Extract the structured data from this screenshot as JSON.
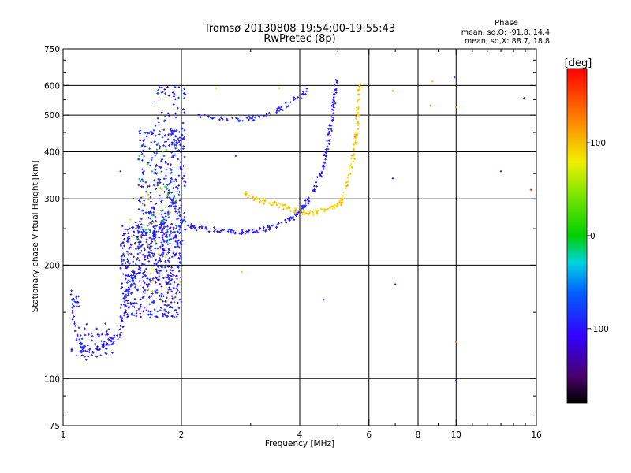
{
  "chart_data": {
    "type": "scatter",
    "title": "Tromsø 20130808 19:54:00-19:55:43",
    "subtitle": "RwPretec (8p)",
    "xlabel": "Frequency [MHz]",
    "ylabel": "Stationary phase Virtual Height [km]",
    "x_scale": "log",
    "y_scale": "log",
    "xlim": [
      1,
      16
    ],
    "ylim": [
      75,
      750
    ],
    "x_ticks": [
      1,
      2,
      4,
      6,
      8,
      10,
      16
    ],
    "y_ticks": [
      75,
      100,
      200,
      300,
      400,
      500,
      600,
      750
    ],
    "x_gridlines": [
      2,
      4,
      6,
      8,
      10
    ],
    "y_gridlines": [
      100,
      200,
      300,
      400,
      500,
      600
    ],
    "grid": true,
    "stats": {
      "heading": "Phase",
      "o_line": "mean, sd,O: -91.8, 14.4",
      "x_line": "mean, sd,X:  88.7, 18.8"
    },
    "colorbar": {
      "label": "[deg]",
      "range": [
        -180,
        180
      ],
      "ticks": [
        100,
        0,
        -100
      ],
      "tick_labels": [
        "100",
        "0",
        "-100"
      ]
    },
    "o_trace": [
      {
        "f": 1.05,
        "h": 160
      },
      {
        "f": 1.1,
        "h": 120
      },
      {
        "f": 1.2,
        "h": 118
      },
      {
        "f": 1.3,
        "h": 125
      },
      {
        "f": 1.4,
        "h": 130
      },
      {
        "f": 1.45,
        "h": 165
      },
      {
        "f": 1.5,
        "h": 185
      },
      {
        "f": 1.6,
        "h": 200
      },
      {
        "f": 1.7,
        "h": 240
      },
      {
        "f": 1.8,
        "h": 260
      },
      {
        "f": 1.9,
        "h": 300
      },
      {
        "f": 2.0,
        "h": 260
      },
      {
        "f": 2.2,
        "h": 250
      },
      {
        "f": 2.5,
        "h": 248
      },
      {
        "f": 2.8,
        "h": 245
      },
      {
        "f": 3.0,
        "h": 246
      },
      {
        "f": 3.3,
        "h": 250
      },
      {
        "f": 3.6,
        "h": 258
      },
      {
        "f": 3.9,
        "h": 270
      },
      {
        "f": 4.1,
        "h": 285
      },
      {
        "f": 4.3,
        "h": 310
      },
      {
        "f": 4.5,
        "h": 345
      },
      {
        "f": 4.65,
        "h": 390
      },
      {
        "f": 4.75,
        "h": 440
      },
      {
        "f": 4.85,
        "h": 500
      },
      {
        "f": 4.9,
        "h": 560
      },
      {
        "f": 4.95,
        "h": 620
      },
      {
        "f": 2.2,
        "h": 500
      },
      {
        "f": 2.6,
        "h": 485
      },
      {
        "f": 3.0,
        "h": 490
      },
      {
        "f": 3.4,
        "h": 505
      },
      {
        "f": 3.8,
        "h": 540
      },
      {
        "f": 4.2,
        "h": 580
      }
    ],
    "x_trace": [
      {
        "f": 2.9,
        "h": 310
      },
      {
        "f": 3.1,
        "h": 300
      },
      {
        "f": 3.4,
        "h": 292
      },
      {
        "f": 3.7,
        "h": 285
      },
      {
        "f": 4.0,
        "h": 277
      },
      {
        "f": 4.3,
        "h": 275
      },
      {
        "f": 4.6,
        "h": 280
      },
      {
        "f": 4.9,
        "h": 285
      },
      {
        "f": 5.1,
        "h": 295
      },
      {
        "f": 5.3,
        "h": 330
      },
      {
        "f": 5.45,
        "h": 380
      },
      {
        "f": 5.55,
        "h": 430
      },
      {
        "f": 5.6,
        "h": 480
      },
      {
        "f": 5.65,
        "h": 540
      },
      {
        "f": 5.7,
        "h": 600
      }
    ],
    "scatter_clusters": [
      {
        "fmin": 1.05,
        "fmax": 1.35,
        "hmin": 112,
        "hmax": 140,
        "phase": -95,
        "n": 60
      },
      {
        "fmin": 1.03,
        "fmax": 1.1,
        "hmin": 155,
        "hmax": 172,
        "phase": -90,
        "n": 15
      },
      {
        "fmin": 1.4,
        "fmax": 2.0,
        "hmin": 145,
        "hmax": 260,
        "phase": -95,
        "n": 500
      },
      {
        "fmin": 1.55,
        "fmax": 2.05,
        "hmin": 230,
        "hmax": 460,
        "phase": -90,
        "n": 300
      },
      {
        "fmin": 1.7,
        "fmax": 2.05,
        "hmin": 420,
        "hmax": 600,
        "phase": -92,
        "n": 60
      },
      {
        "fmin": 1.45,
        "fmax": 2.0,
        "hmin": 160,
        "hmax": 320,
        "phase": 95,
        "n": 40
      },
      {
        "fmin": 1.5,
        "fmax": 1.95,
        "hmin": 220,
        "hmax": 420,
        "phase": 5,
        "n": 30
      }
    ],
    "outliers": [
      {
        "f": 1.4,
        "h": 355,
        "phase": -100
      },
      {
        "f": 2.45,
        "h": 590,
        "phase": 90
      },
      {
        "f": 2.75,
        "h": 390,
        "phase": -95
      },
      {
        "f": 2.85,
        "h": 192,
        "phase": 100
      },
      {
        "f": 4.6,
        "h": 162,
        "phase": -95
      },
      {
        "f": 6.9,
        "h": 340,
        "phase": -100
      },
      {
        "f": 7.0,
        "h": 178,
        "phase": -90
      },
      {
        "f": 8.6,
        "h": 530,
        "phase": 20
      },
      {
        "f": 8.7,
        "h": 615,
        "phase": 110
      },
      {
        "f": 9.9,
        "h": 630,
        "phase": -90
      },
      {
        "f": 10.0,
        "h": 525,
        "phase": 140
      },
      {
        "f": 10.0,
        "h": 125,
        "phase": 150
      },
      {
        "f": 10.0,
        "h": 99,
        "phase": -95
      },
      {
        "f": 13.0,
        "h": 355,
        "phase": -95
      },
      {
        "f": 14.9,
        "h": 555,
        "phase": -100
      },
      {
        "f": 15.5,
        "h": 317,
        "phase": 170
      },
      {
        "f": 6.9,
        "h": 580,
        "phase": 120
      },
      {
        "f": 3.55,
        "h": 590,
        "phase": 100
      }
    ]
  }
}
